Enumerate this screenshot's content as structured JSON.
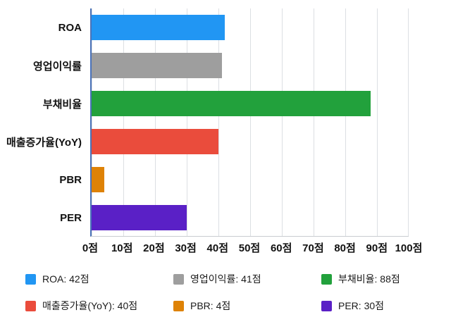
{
  "chart_data": {
    "type": "bar",
    "orientation": "horizontal",
    "title": "",
    "categories": [
      "ROA",
      "영업이익률",
      "부채비율",
      "매출증가율(YoY)",
      "PBR",
      "PER"
    ],
    "values": [
      42,
      41,
      88,
      40,
      4,
      30
    ],
    "colors": [
      "#2196F3",
      "#9E9E9E",
      "#22A13C",
      "#EA4C3C",
      "#DE8206",
      "#5A20C6"
    ],
    "xlim": [
      0,
      100
    ],
    "x_ticks": [
      "0점",
      "10점",
      "20점",
      "30점",
      "40점",
      "50점",
      "60점",
      "70점",
      "80점",
      "90점",
      "100점"
    ],
    "grid": true,
    "legend_position": "bottom",
    "legend": [
      {
        "label": "ROA: 42점",
        "color": "#2196F3"
      },
      {
        "label": "영업이익률: 41점",
        "color": "#9E9E9E"
      },
      {
        "label": "부채비율: 88점",
        "color": "#22A13C"
      },
      {
        "label": "매출증가율(YoY): 40점",
        "color": "#EA4C3C"
      },
      {
        "label": "PBR: 4점",
        "color": "#DE8206"
      },
      {
        "label": "PER: 30점",
        "color": "#5A20C6"
      }
    ]
  }
}
